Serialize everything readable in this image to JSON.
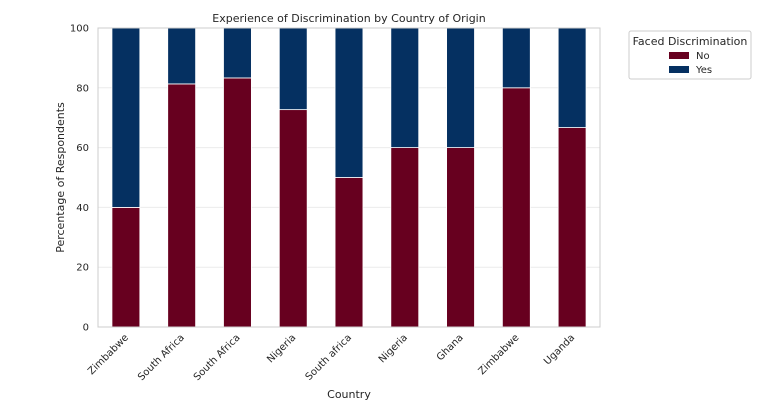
{
  "chart_data": {
    "type": "bar",
    "stacked": true,
    "title": "Experience of Discrimination by Country of Origin",
    "xlabel": "Country",
    "ylabel": "Percentage of Respondents",
    "categories": [
      "Zimbabwe",
      "South Africa",
      "South Africa",
      "Nigeria",
      "South africa",
      "Nigeria",
      "Ghana",
      "Zimbabwe",
      "Uganda"
    ],
    "series": [
      {
        "name": "No",
        "color": "#67001f",
        "values": [
          40,
          81.3,
          83.3,
          72.7,
          50,
          60,
          60,
          80,
          66.7
        ]
      },
      {
        "name": "Yes",
        "color": "#053061",
        "values": [
          60,
          18.7,
          16.7,
          27.3,
          50,
          40,
          40,
          20,
          33.3
        ]
      }
    ],
    "ylim": [
      0,
      100
    ],
    "yticks": [
      0,
      20,
      40,
      60,
      80,
      100
    ],
    "grid": true,
    "legend": {
      "title": "Faced Discrimination",
      "placement": "outside-top-right"
    }
  }
}
